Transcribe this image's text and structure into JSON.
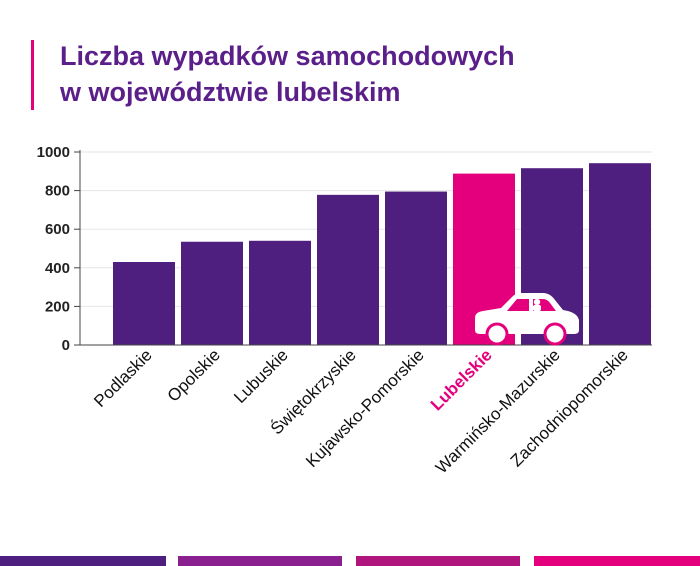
{
  "title": {
    "line1": "Liczba wypadków samochodowych",
    "line2": "w województwie lubelskim"
  },
  "colors": {
    "bar": "#4f1f7f",
    "highlight": "#e4007c",
    "title": "#5b1f8a",
    "footer": [
      "#4f1f7f",
      "#8a1f8f",
      "#b0157e",
      "#e4007c"
    ]
  },
  "chart_data": {
    "type": "bar",
    "title": "Liczba wypadków samochodowych w województwie lubelskim",
    "xlabel": "",
    "ylabel": "",
    "ylim": [
      0,
      1000
    ],
    "yticks": [
      0,
      200,
      400,
      600,
      800,
      1000
    ],
    "grid": true,
    "categories": [
      "Podlaskie",
      "Opolskie",
      "Lubuskie",
      "Świętokrzyskie",
      "Kujawsko-Pomorskie",
      "Lubelskie",
      "Warmińsko-Mazurskie",
      "Zachodniopomorskie"
    ],
    "values": [
      430,
      535,
      540,
      778,
      795,
      888,
      916,
      942
    ],
    "highlight": "Lubelskie",
    "annotation_icon": "car-icon"
  }
}
